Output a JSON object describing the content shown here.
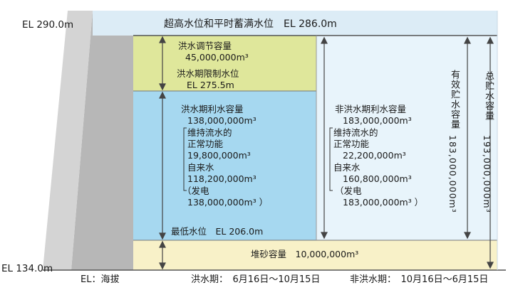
{
  "elevations": {
    "top": "EL 290.0m",
    "bottom": "EL 134.0m"
  },
  "header": "超高水位和平时蓄满水位　EL 286.0m",
  "zone_flood": {
    "capacity_label": "洪水调节容量",
    "capacity_value": "45,000,000m³",
    "limit_label": "洪水期限制水位",
    "limit_value": "EL 275.5m"
  },
  "zone_flood_use": {
    "title": "洪水期利水容量",
    "total": "138,000,000m³",
    "maint_label_1": "维持流水的",
    "maint_label_2": "正常功能",
    "maint_value": "19,800,000m³",
    "water_label": "自来水",
    "water_value": "118,200,000m³",
    "power_label": "（发电",
    "power_value": "138,000,000m³ ）",
    "min_level": "最低水位　EL 206.0m"
  },
  "zone_nonflood_use": {
    "title": "非洪水期利水容量",
    "total": "183,000,000m³",
    "maint_label_1": "维持流水的",
    "maint_label_2": "正常功能",
    "maint_value": "22,200,000m³",
    "water_label": "自来水",
    "water_value": "160,800,000m³",
    "power_label": "（发电",
    "power_value": "183,000,000m³ ）"
  },
  "effective": {
    "label": "有效贮水容量",
    "value": "183,000,000m³"
  },
  "gross": {
    "label": "总贮水容量",
    "value": "193,000,000m³"
  },
  "sediment": "堆砂容量　10,000,000m³",
  "footer": {
    "legend": "EL：海拔",
    "flood_period": "洪水期：　6月16日～10月15日",
    "nonflood_period": "非洪水期：　10月16日～6月15日"
  },
  "colors": {
    "top_band": "#dcecf6",
    "flood_zone": "#dfe79b",
    "use_zone_left": "#a6d8f0",
    "use_zone_right": "#e8f4fb",
    "sediment": "#f8f1c8",
    "dam": "#c6c6c6"
  }
}
